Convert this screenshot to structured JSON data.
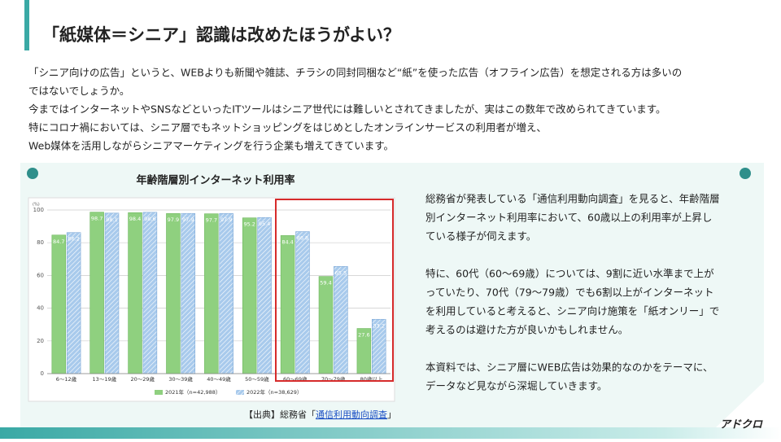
{
  "header": {
    "title": "「紙媒体＝シニア」認識は改めたほうがよい？"
  },
  "body": [
    "「シニア向けの広告」というと、WEBよりも新聞や雑誌、チラシの同封同梱など“紙”を使った広告（オフライン広告）を想定される方は多いの",
    "ではないでしょうか。",
    "今まではインターネットやSNSなどといったITツールはシニア世代には難しいとされてきましたが、実はこの数年で改められてきています。",
    "特にコロナ禍においては、シニア層でもネットショッピングをはじめとしたオンラインサービスの利用者が増え、",
    "Web媒体を活用しながらシニアマーケティングを行う企業も増えてきています。"
  ],
  "panel": {
    "paragraphs": [
      [
        "総務省が発表している「通信利用動向調査」を見ると、年齢階層",
        "別インターネット利用率において、60歳以上の利用率が上昇し",
        "ている様子が伺えます。"
      ],
      [
        "特に、60代（60～69歳）については、9割に近い水準まで上が",
        "っていたり、70代（79～79歳）でも6割以上がインターネット",
        "を利用していると考えると、シニア向け施策を「紙オンリー」で",
        "考えるのは避けた方が良いかもしれません。"
      ],
      [
        "本資料では、シニア層にWEB広告は効果的なのかをテーマに、",
        "データなど見ながら深堀していきます。"
      ]
    ],
    "source_prefix": "【出典】総務省「",
    "source_link": "通信利用動向調査",
    "source_suffix": "」"
  },
  "logo": "アドクロ",
  "chart_data": {
    "type": "bar",
    "title": "年齢階層別インターネット利用率",
    "y_unit": "(%)",
    "categories": [
      "6～12歳",
      "13～19歳",
      "20～29歳",
      "30～39歳",
      "40～49歳",
      "50～59歳",
      "60～69歳",
      "70～79歳",
      "80歳以上"
    ],
    "series": [
      {
        "name": "2021年（n=42,988）",
        "color": "#8fd07f",
        "values": [
          84.7,
          98.7,
          98.4,
          97.9,
          97.7,
          95.2,
          84.4,
          59.4,
          27.6
        ]
      },
      {
        "name": "2022年（n=38,629）",
        "color": "#a8caec",
        "values": [
          86.2,
          98.1,
          98.6,
          97.9,
          97.9,
          95.4,
          86.8,
          65.5,
          33.2
        ]
      }
    ],
    "ylim": [
      0,
      100
    ],
    "yticks": [
      0,
      20,
      40,
      60,
      80,
      100
    ],
    "grid": true,
    "legend": "bottom"
  }
}
